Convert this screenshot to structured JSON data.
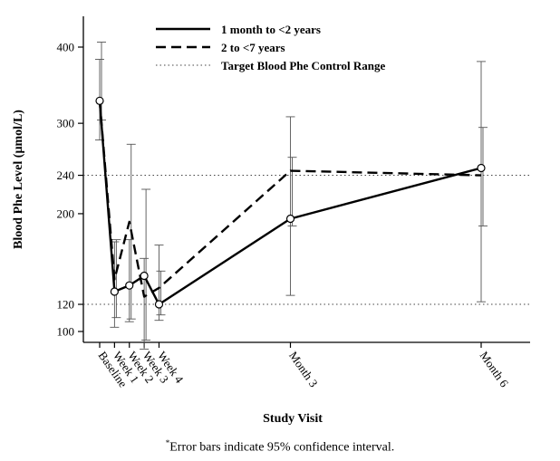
{
  "chart_data": {
    "type": "line",
    "title": "",
    "xlabel": "Study Visit",
    "ylabel": "Blood Phe Level (µmol/L)",
    "x_positions_days": [
      0,
      7,
      14,
      21,
      28,
      90,
      180
    ],
    "categories": [
      "Baseline",
      "Week 1",
      "Week 2",
      "Week 3",
      "Week 4",
      "Month 3",
      "Month 6"
    ],
    "y_ticks": [
      100,
      120,
      200,
      240,
      300,
      400
    ],
    "ylim": [
      90,
      420
    ],
    "grid": false,
    "legend_position": "top",
    "reference_lines": [
      {
        "name": "Target Blood Phe Control Range",
        "values": [
          120,
          240
        ],
        "style": "dotted"
      }
    ],
    "series": [
      {
        "name": "1 month to <2 years",
        "style": "solid",
        "x": [
          0,
          7,
          14,
          21,
          28,
          90,
          180
        ],
        "values": [
          328,
          130,
          135,
          143,
          120,
          195,
          248
        ],
        "ci_low": [
          280,
          103,
          107,
          88,
          108,
          127,
          122
        ],
        "ci_high": [
          383,
          173,
          175,
          158,
          170,
          308,
          380
        ]
      },
      {
        "name": "2 to <7 years",
        "style": "dashed",
        "x": [
          0,
          7,
          14,
          21,
          28,
          90,
          180
        ],
        "values": [
          328,
          140,
          192,
          126,
          133,
          245,
          240
        ],
        "ci_low": [
          304,
          110,
          109,
          94,
          112,
          188,
          188
        ],
        "ci_high": [
          407,
          175,
          275,
          225,
          147,
          260,
          295
        ]
      }
    ]
  },
  "footnote": {
    "marker": "*",
    "text": "Error bars indicate 95% confidence interval."
  }
}
